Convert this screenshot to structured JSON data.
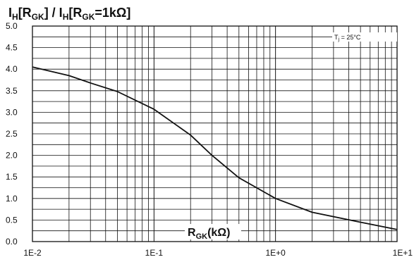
{
  "chart_data": {
    "type": "line",
    "title": {
      "main": "I",
      "sub1": "H",
      "part2": "[R",
      "sub2": "GK",
      "part3": "] / I",
      "sub3": "H",
      "part4": "[R",
      "sub4": "GK",
      "part5": "=1kΩ]"
    },
    "xlabel": {
      "main": "R",
      "sub": "GK",
      "unit": "(kΩ)"
    },
    "annotation": {
      "main": "T",
      "sub": "j",
      "rest": " = 25°C"
    },
    "x_scale": "log",
    "xlim": [
      0.01,
      10
    ],
    "ylim": [
      0,
      5
    ],
    "grid": true,
    "x_tick_labels": [
      "1E-2",
      "1E-1",
      "1E+0",
      "1E+1"
    ],
    "y_tick_labels": [
      "0.0",
      "0.5",
      "1.0",
      "1.5",
      "2.0",
      "2.5",
      "3.0",
      "3.5",
      "4.0",
      "4.5",
      "5.0"
    ],
    "series": [
      {
        "x": [
          0.01,
          0.02,
          0.03,
          0.05,
          0.1,
          0.2,
          0.3,
          0.5,
          1,
          2,
          5,
          10
        ],
        "y": [
          4.05,
          3.85,
          3.68,
          3.48,
          3.07,
          2.47,
          2.0,
          1.48,
          1.0,
          0.68,
          0.45,
          0.28
        ]
      }
    ]
  }
}
